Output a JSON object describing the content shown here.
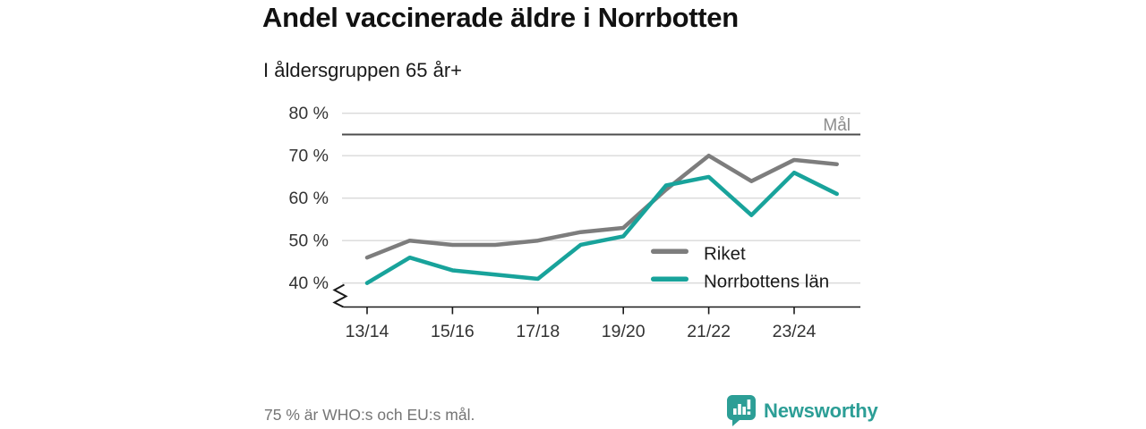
{
  "header": {
    "title": "Andel vaccinerade äldre i Norrbotten",
    "subtitle": "I åldersgruppen 65 år+"
  },
  "chart_data": {
    "type": "line",
    "categories": [
      "13/14",
      "14/15",
      "15/16",
      "16/17",
      "17/18",
      "18/19",
      "19/20",
      "20/21",
      "21/22",
      "22/23",
      "23/24",
      "24/25"
    ],
    "xtick_labels": [
      "13/14",
      "15/16",
      "17/18",
      "19/20",
      "21/22",
      "23/24"
    ],
    "yticks": [
      {
        "value": 80,
        "label": "80 %"
      },
      {
        "value": 70,
        "label": "70 %"
      },
      {
        "value": 60,
        "label": "60 %"
      },
      {
        "value": 50,
        "label": "50 %"
      },
      {
        "value": 40,
        "label": "40 %"
      }
    ],
    "ylim": [
      40,
      80
    ],
    "axis_break": true,
    "grid": true,
    "legend_position": "inside-right",
    "goal": {
      "value": 75,
      "label": "Mål"
    },
    "series": [
      {
        "name": "Riket",
        "color": "#7d7d7d",
        "values": [
          46,
          50,
          49,
          49,
          50,
          52,
          53,
          62,
          70,
          64,
          69,
          68
        ]
      },
      {
        "name": "Norrbottens län",
        "color": "#18a39b",
        "values": [
          40,
          46,
          43,
          42,
          41,
          49,
          51,
          63,
          65,
          56,
          66,
          61
        ]
      }
    ]
  },
  "footer": {
    "note": "75 % är WHO:s och EU:s mål.",
    "brand": "Newsworthy",
    "accent_color": "#2c9e96"
  }
}
